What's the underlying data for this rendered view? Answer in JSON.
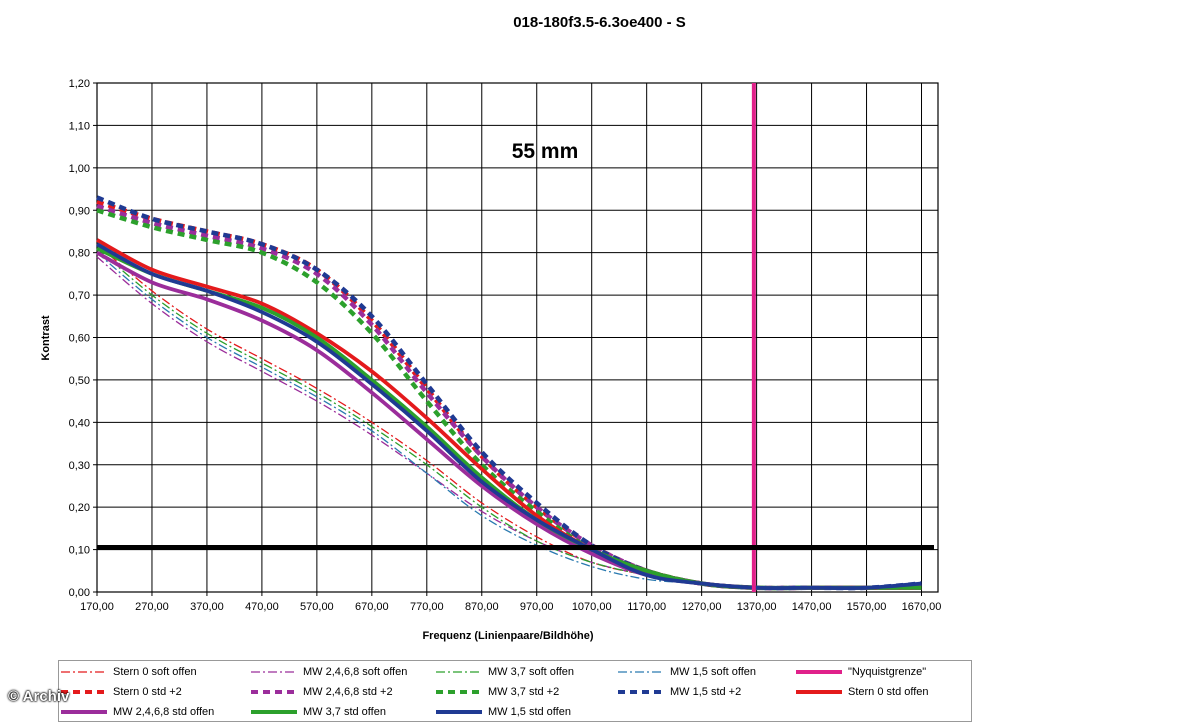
{
  "chart_data": {
    "type": "line",
    "title": "018-180f3.5-6.3oe400 - S",
    "xlabel": "Frequenz (Linienpaare/Bildhöhe)",
    "ylabel": "Kontrast",
    "annotation": "55 mm",
    "xlim": [
      170,
      1700
    ],
    "ylim": [
      0,
      1.2
    ],
    "x_ticks": [
      "170,00",
      "270,00",
      "370,00",
      "470,00",
      "570,00",
      "670,00",
      "770,00",
      "870,00",
      "970,00",
      "1070,00",
      "1170,00",
      "1270,00",
      "1370,00",
      "1470,00",
      "1570,00",
      "1670,00"
    ],
    "y_ticks": [
      "0,00",
      "0,10",
      "0,20",
      "0,30",
      "0,40",
      "0,50",
      "0,60",
      "0,70",
      "0,80",
      "0,90",
      "1,00",
      "1,10",
      "1,20"
    ],
    "x": [
      170,
      270,
      370,
      470,
      570,
      670,
      770,
      870,
      970,
      1070,
      1170,
      1270,
      1370,
      1470,
      1570,
      1670
    ],
    "series": [
      {
        "name": "Stern 0 soft offen",
        "color": "#e41a1c",
        "style": "dashdot-thin",
        "values": [
          0.82,
          0.71,
          0.62,
          0.55,
          0.48,
          0.4,
          0.31,
          0.21,
          0.13,
          0.07,
          0.04,
          0.02,
          0.01,
          0.01,
          0.01,
          0.01
        ]
      },
      {
        "name": "MW 2,4,6,8 soft offen",
        "color": "#9b2d9b",
        "style": "dashdot-thin",
        "values": [
          0.79,
          0.68,
          0.59,
          0.52,
          0.45,
          0.37,
          0.28,
          0.19,
          0.12,
          0.07,
          0.04,
          0.02,
          0.01,
          0.01,
          0.01,
          0.01
        ]
      },
      {
        "name": "MW 3,7 soft offen",
        "color": "#2ca02c",
        "style": "dashdot-thin",
        "values": [
          0.81,
          0.7,
          0.61,
          0.54,
          0.47,
          0.39,
          0.3,
          0.2,
          0.12,
          0.07,
          0.04,
          0.02,
          0.01,
          0.01,
          0.01,
          0.01
        ]
      },
      {
        "name": "MW 1,5 soft offen",
        "color": "#2a7ab0",
        "style": "dashdot-thin",
        "values": [
          0.8,
          0.69,
          0.6,
          0.53,
          0.46,
          0.38,
          0.28,
          0.18,
          0.11,
          0.06,
          0.03,
          0.02,
          0.01,
          0.01,
          0.01,
          0.01
        ]
      },
      {
        "name": "\"Nyquistgrenze\"",
        "color": "#e0218a",
        "style": "vline",
        "xline": 1365
      },
      {
        "name": "Stern 0 std +2",
        "color": "#e41a1c",
        "style": "dash-thick",
        "values": [
          0.92,
          0.88,
          0.85,
          0.82,
          0.76,
          0.64,
          0.48,
          0.32,
          0.2,
          0.11,
          0.05,
          0.02,
          0.01,
          0.01,
          0.01,
          0.01
        ]
      },
      {
        "name": "MW 2,4,6,8 std +2",
        "color": "#9b2d9b",
        "style": "dash-thick",
        "values": [
          0.91,
          0.87,
          0.84,
          0.81,
          0.75,
          0.63,
          0.47,
          0.32,
          0.2,
          0.11,
          0.05,
          0.02,
          0.01,
          0.01,
          0.01,
          0.01
        ]
      },
      {
        "name": "MW 3,7 std +2",
        "color": "#2ca02c",
        "style": "dash-thick",
        "values": [
          0.9,
          0.86,
          0.83,
          0.8,
          0.73,
          0.61,
          0.45,
          0.3,
          0.19,
          0.1,
          0.05,
          0.02,
          0.01,
          0.01,
          0.01,
          0.01
        ]
      },
      {
        "name": "MW 1,5 std +2",
        "color": "#1f3a93",
        "style": "dash-thick",
        "values": [
          0.93,
          0.88,
          0.85,
          0.82,
          0.76,
          0.65,
          0.49,
          0.33,
          0.21,
          0.11,
          0.05,
          0.02,
          0.01,
          0.01,
          0.01,
          0.02
        ]
      },
      {
        "name": "Stern 0 std offen",
        "color": "#e41a1c",
        "style": "solid-thick",
        "values": [
          0.83,
          0.76,
          0.72,
          0.68,
          0.61,
          0.52,
          0.41,
          0.29,
          0.18,
          0.1,
          0.05,
          0.02,
          0.01,
          0.01,
          0.01,
          0.01
        ]
      },
      {
        "name": "MW 2,4,6,8 std offen",
        "color": "#9b2d9b",
        "style": "solid-thick",
        "values": [
          0.8,
          0.73,
          0.69,
          0.64,
          0.57,
          0.47,
          0.36,
          0.25,
          0.16,
          0.09,
          0.04,
          0.02,
          0.01,
          0.01,
          0.01,
          0.01
        ]
      },
      {
        "name": "MW 3,7 std offen",
        "color": "#2ca02c",
        "style": "solid-thick",
        "values": [
          0.81,
          0.75,
          0.71,
          0.67,
          0.6,
          0.5,
          0.39,
          0.27,
          0.17,
          0.1,
          0.05,
          0.02,
          0.01,
          0.01,
          0.01,
          0.01
        ]
      },
      {
        "name": "MW 1,5 std offen",
        "color": "#1f3a93",
        "style": "solid-thick",
        "values": [
          0.82,
          0.75,
          0.71,
          0.66,
          0.59,
          0.49,
          0.38,
          0.26,
          0.17,
          0.1,
          0.04,
          0.02,
          0.01,
          0.01,
          0.01,
          0.02
        ]
      }
    ],
    "threshold_line": {
      "y": 0.105,
      "color": "#000000"
    },
    "grid": true,
    "legend": "bottom"
  },
  "watermark": "© Archiv"
}
